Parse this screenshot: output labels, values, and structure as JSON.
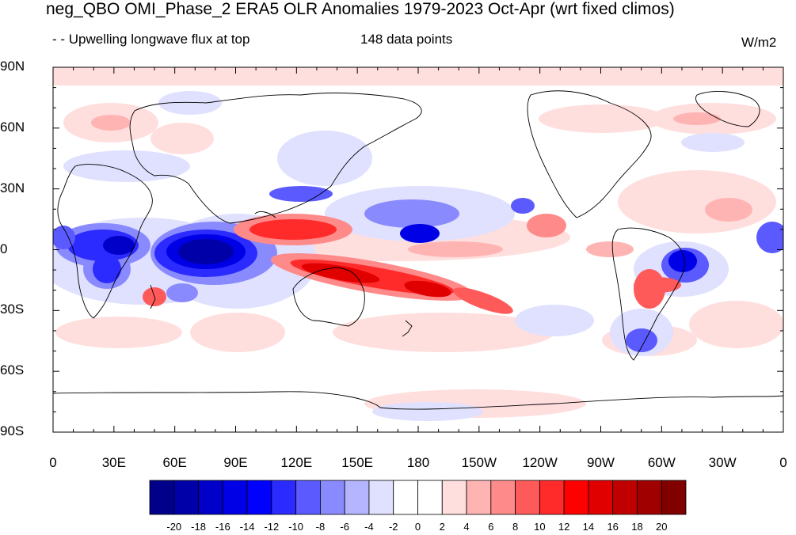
{
  "title": "neg_QBO OMI_Phase_2 ERA5 OLR Anomalies 1979-2023 Oct-Apr (wrt fixed climos)",
  "subtitle_left": "- - Upwelling longwave flux at top",
  "subtitle_center": "148 data points",
  "units": "W/m2",
  "lat_labels": [
    "90N",
    "60N",
    "30N",
    "0",
    "30S",
    "60S",
    "90S"
  ],
  "lon_labels": [
    "0",
    "30E",
    "60E",
    "90E",
    "120E",
    "150E",
    "180",
    "150W",
    "120W",
    "90W",
    "60W",
    "30W",
    "0"
  ],
  "colorbar": {
    "labels": [
      "-20",
      "-18",
      "-16",
      "-14",
      "-12",
      "-10",
      "-8",
      "-6",
      "-4",
      "-2",
      "0",
      "2",
      "4",
      "6",
      "8",
      "10",
      "12",
      "14",
      "16",
      "18",
      "20"
    ],
    "colors": [
      "#00008a",
      "#0000a8",
      "#0000c8",
      "#0000e6",
      "#0000ff",
      "#2b2bff",
      "#5a5aff",
      "#8a8aff",
      "#b4b4ff",
      "#e0e0ff",
      "#ffffff",
      "#ffffff",
      "#ffdede",
      "#ffb4b4",
      "#ff8a8a",
      "#ff5a5a",
      "#ff2b2b",
      "#ff0000",
      "#e00000",
      "#c00000",
      "#a00000",
      "#800000"
    ]
  },
  "anomaly_regions": [
    {
      "name": "indian-ocean-negative",
      "level": -20,
      "lon": 80,
      "lat": 0
    },
    {
      "name": "africa-negative",
      "level": -12,
      "lon": 25,
      "lat": -5
    },
    {
      "name": "maritime-continent-positive",
      "level": 12,
      "lon": 125,
      "lat": 10
    },
    {
      "name": "spcz-positive",
      "level": 14,
      "lon": 175,
      "lat": -18
    },
    {
      "name": "central-pacific-negative",
      "level": -10,
      "lon": 185,
      "lat": 8
    },
    {
      "name": "brazil-negative",
      "level": -12,
      "lon": 310,
      "lat": -8
    },
    {
      "name": "south-atlantic-positive",
      "level": 8,
      "lon": 295,
      "lat": -20
    },
    {
      "name": "arctic-positive",
      "level": 2,
      "lon": 180,
      "lat": 85
    }
  ]
}
